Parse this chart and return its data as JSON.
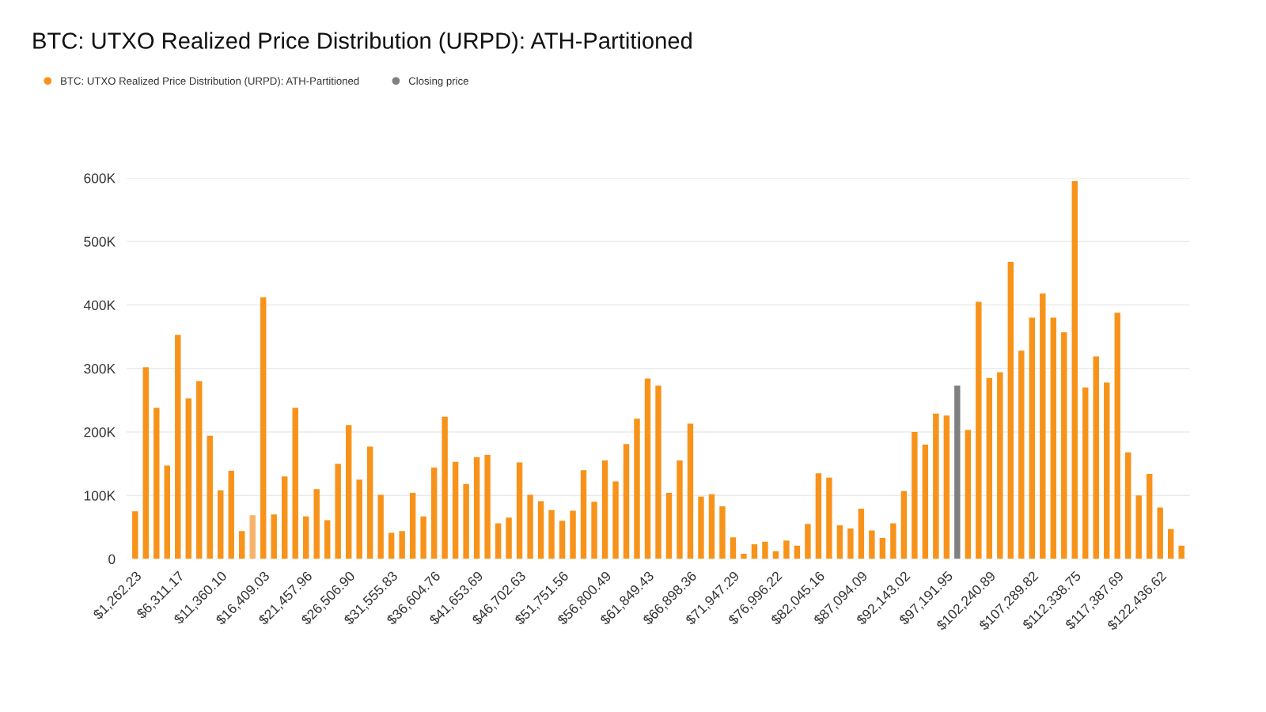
{
  "chart_data": {
    "type": "bar",
    "title": "BTC: UTXO Realized Price Distribution (URPD): ATH-Partitioned",
    "categories": [
      "$1,262.23",
      null,
      null,
      null,
      "$6,311.17",
      null,
      null,
      null,
      "$11,360.10",
      null,
      null,
      null,
      "$16,409.03",
      null,
      null,
      null,
      "$21,457.96",
      null,
      null,
      null,
      "$26,506.90",
      null,
      null,
      null,
      "$31,555.83",
      null,
      null,
      null,
      "$36,604.76",
      null,
      null,
      null,
      "$41,653.69",
      null,
      null,
      null,
      "$46,702.63",
      null,
      null,
      null,
      "$51,751.56",
      null,
      null,
      null,
      "$56,800.49",
      null,
      null,
      null,
      "$61,849.43",
      null,
      null,
      null,
      "$66,898.36",
      null,
      null,
      null,
      "$71,947.29",
      null,
      null,
      null,
      "$76,996.22",
      null,
      null,
      null,
      "$82,045.16",
      null,
      null,
      null,
      "$87,094.09",
      null,
      null,
      null,
      "$92,143.02",
      null,
      null,
      null,
      "$97,191.95",
      null,
      null,
      null,
      "$102,240.89",
      null,
      null,
      null,
      "$107,289.82",
      null,
      null,
      null,
      "$112,338.75",
      null,
      null,
      null,
      "$117,387.69",
      null,
      null,
      null,
      "$122,436.62",
      null,
      null
    ],
    "series": [
      {
        "name": "BTC: UTXO Realized Price Distribution (URPD): ATH-Partitioned",
        "color": "#f7931a",
        "colors": [
          "#f7931a",
          "#f7931a",
          "#f7931a",
          "#f7931a",
          "#f7931a",
          "#f7931a",
          "#f7931a",
          "#f7931a",
          "#f7931a",
          "#f7931a",
          "#f7931a",
          "#f6b36c",
          "#f7931a",
          "#f7931a",
          "#f7931a",
          "#f7931a",
          "#f7931a",
          "#f7931a",
          "#f7931a",
          "#f7931a",
          "#f7931a",
          "#f7931a",
          "#f7931a",
          "#f7931a",
          "#f7931a",
          "#f7931a",
          "#f7931a",
          "#f7931a",
          "#f7931a",
          "#f7931a",
          "#f7931a",
          "#f7931a",
          "#f7931a",
          "#f7931a",
          "#f7931a",
          "#f7931a",
          "#f7931a",
          "#f7931a",
          "#f7931a",
          "#f7931a",
          "#f7931a",
          "#f7931a",
          "#f7931a",
          "#f7931a",
          "#f7931a",
          "#f7931a",
          "#f7931a",
          "#f7931a",
          "#f7931a",
          "#f7931a",
          "#f7931a",
          "#f7931a",
          "#f7931a",
          "#f7931a",
          "#f7931a",
          "#f7931a",
          "#f7931a",
          "#f7931a",
          "#f7931a",
          "#f7931a",
          "#f7931a",
          "#f7931a",
          "#f7931a",
          "#f7931a",
          "#f7931a",
          "#f7931a",
          "#f7931a",
          "#f7931a",
          "#f7931a",
          "#f7931a",
          "#f7931a",
          "#f7931a",
          "#f7931a",
          "#f7931a",
          "#f7931a",
          "#f7931a",
          "#f7931a",
          "#f7931a",
          "#f7931a",
          "#f7931a",
          "#f7931a",
          "#f7931a",
          "#f7931a",
          "#f7931a",
          "#f7931a",
          "#f7931a",
          "#f7931a",
          "#f7931a",
          "#f7931a",
          "#f7931a",
          "#f7931a",
          "#f7931a",
          "#f7931a",
          "#f7931a",
          "#f7931a",
          "#f7931a",
          "#f7931a",
          "#f7931a",
          "#f7931a"
        ],
        "values": [
          75000,
          302000,
          238000,
          147000,
          353000,
          253000,
          280000,
          194000,
          108000,
          139000,
          44000,
          69000,
          412000,
          70000,
          130000,
          238000,
          67000,
          110000,
          61000,
          150000,
          211000,
          125000,
          177000,
          101000,
          41000,
          44000,
          104000,
          67000,
          144000,
          224000,
          153000,
          118000,
          160000,
          164000,
          56000,
          65000,
          152000,
          101000,
          91000,
          77000,
          60000,
          76000,
          140000,
          90000,
          155000,
          122000,
          181000,
          221000,
          284000,
          273000,
          104000,
          155000,
          213000,
          98000,
          102000,
          83000,
          34000,
          8000,
          23000,
          27000,
          12000,
          29000,
          21000,
          55000,
          135000,
          128000,
          53000,
          48000,
          79000,
          45000,
          33000,
          56000,
          107000,
          200000,
          180000,
          229000,
          226000,
          null,
          203000,
          405000,
          285000,
          294000,
          468000,
          328000,
          380000,
          418000,
          380000,
          357000,
          595000,
          270000,
          319000,
          278000,
          388000,
          168000,
          100000,
          134000,
          81000,
          47000,
          21000
        ]
      },
      {
        "name": "Closing price",
        "color": "#808080",
        "values": [
          null,
          null,
          null,
          null,
          null,
          null,
          null,
          null,
          null,
          null,
          null,
          null,
          null,
          null,
          null,
          null,
          null,
          null,
          null,
          null,
          null,
          null,
          null,
          null,
          null,
          null,
          null,
          null,
          null,
          null,
          null,
          null,
          null,
          null,
          null,
          null,
          null,
          null,
          null,
          null,
          null,
          null,
          null,
          null,
          null,
          null,
          null,
          null,
          null,
          null,
          null,
          null,
          null,
          null,
          null,
          null,
          null,
          null,
          null,
          null,
          null,
          null,
          null,
          null,
          null,
          null,
          null,
          null,
          null,
          null,
          null,
          null,
          null,
          null,
          null,
          null,
          null,
          273000,
          null,
          null,
          null,
          null,
          null,
          null,
          null,
          null,
          null,
          null,
          null,
          null,
          null,
          null,
          null,
          null,
          null,
          null,
          null,
          null,
          null
        ]
      }
    ],
    "ylim": [
      0,
      600000
    ],
    "yticks": [
      0,
      {
        "value": 100000,
        "label": "100K"
      },
      {
        "value": 200000,
        "label": "200K"
      },
      {
        "value": 300000,
        "label": "300K"
      },
      {
        "value": 400000,
        "label": "400K"
      },
      {
        "value": 500000,
        "label": "500K"
      },
      {
        "value": 600000,
        "label": "600K"
      }
    ],
    "grid": "y",
    "legend": "top left"
  }
}
